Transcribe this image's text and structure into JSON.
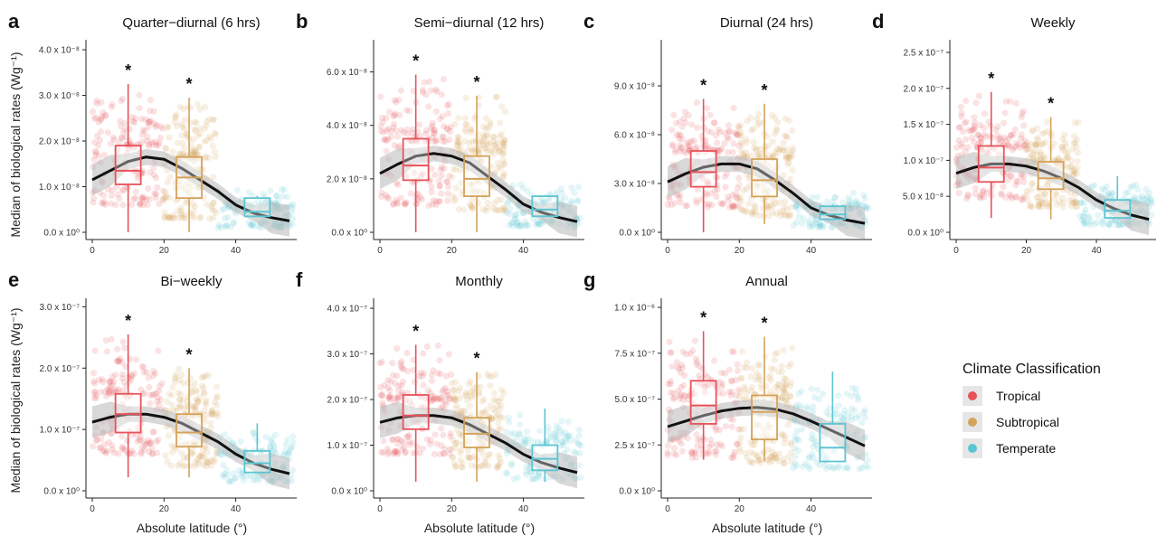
{
  "colors": {
    "tropical": "#e8525a",
    "subtropical": "#d4a35a",
    "temperate": "#5bc5d2",
    "trend": "#111111",
    "ribbon": "#b8b8b8"
  },
  "figure": {
    "y_axis_label": "Median of biological rates (Wg⁻¹)",
    "x_axis_label": "Absolute latitude (°)",
    "significance_marker": "*"
  },
  "legend": {
    "title": "Climate Classification",
    "items": [
      {
        "key": "tropical",
        "label": "Tropical"
      },
      {
        "key": "subtropical",
        "label": "Subtropical"
      },
      {
        "key": "temperate",
        "label": "Temperate"
      }
    ]
  },
  "chart_data": [
    {
      "id": "a",
      "letter": "a",
      "title": "Quarter−diurnal (6 hrs)",
      "type": "scatter",
      "xlim": [
        0,
        56
      ],
      "ylim": [
        0,
        4.1
      ],
      "x_ticks": [
        0,
        20,
        40
      ],
      "x_tick_labels": [
        "0",
        "20",
        "40"
      ],
      "y_ticks": [
        0,
        1,
        2,
        3,
        4
      ],
      "y_tick_labels": [
        "0.0 x 10⁰",
        "1.0 x 10⁻⁸",
        "2.0 x 10⁻⁸",
        "3.0 x 10⁻⁸",
        "4.0 x 10⁻⁸"
      ],
      "y_unit_scale": "1e-8",
      "trend": {
        "x": [
          0,
          5,
          10,
          15,
          20,
          25,
          30,
          35,
          40,
          45,
          50,
          55
        ],
        "y": [
          1.15,
          1.35,
          1.55,
          1.65,
          1.6,
          1.4,
          1.15,
          0.9,
          0.6,
          0.42,
          0.32,
          0.25
        ]
      },
      "boxes": [
        {
          "group": "tropical",
          "x": 10,
          "min": 0.0,
          "q1": 1.05,
          "median": 1.35,
          "q3": 1.9,
          "max": 3.25,
          "star": true
        },
        {
          "group": "subtropical",
          "x": 27,
          "min": 0.0,
          "q1": 0.75,
          "median": 1.2,
          "q3": 1.65,
          "max": 2.95,
          "star": true
        },
        {
          "group": "temperate",
          "x": 46,
          "min": 0.35,
          "q1": 0.35,
          "median": 0.45,
          "q3": 0.75,
          "max": 0.8,
          "star": false
        }
      ],
      "points": [
        {
          "group": "tropical",
          "x_range": [
            0,
            20
          ],
          "y_range": [
            0.6,
            3.2
          ]
        },
        {
          "group": "subtropical",
          "x_range": [
            20,
            35
          ],
          "y_range": [
            0.3,
            2.9
          ]
        },
        {
          "group": "temperate",
          "x_range": [
            35,
            56
          ],
          "y_range": [
            0.1,
            0.95
          ]
        }
      ]
    },
    {
      "id": "b",
      "letter": "b",
      "title": "Semi−diurnal (12 hrs)",
      "type": "scatter",
      "xlim": [
        0,
        56
      ],
      "ylim": [
        0,
        7.0
      ],
      "x_ticks": [
        0,
        20,
        40
      ],
      "x_tick_labels": [
        "0",
        "20",
        "40"
      ],
      "y_ticks": [
        0,
        2,
        4,
        6
      ],
      "y_tick_labels": [
        "0.0 x 10⁰",
        "2.0 x 10⁻⁸",
        "4.0 x 10⁻⁸",
        "6.0 x 10⁻⁸"
      ],
      "y_unit_scale": "1e-8",
      "trend": {
        "x": [
          0,
          5,
          10,
          15,
          20,
          25,
          30,
          35,
          40,
          45,
          50,
          55
        ],
        "y": [
          2.2,
          2.55,
          2.85,
          2.95,
          2.85,
          2.6,
          2.1,
          1.6,
          1.05,
          0.75,
          0.55,
          0.4
        ]
      },
      "boxes": [
        {
          "group": "tropical",
          "x": 10,
          "min": 0.0,
          "q1": 1.95,
          "median": 2.5,
          "q3": 3.5,
          "max": 5.9,
          "star": true
        },
        {
          "group": "subtropical",
          "x": 27,
          "min": 0.0,
          "q1": 1.35,
          "median": 2.0,
          "q3": 2.85,
          "max": 5.1,
          "star": true
        },
        {
          "group": "temperate",
          "x": 46,
          "min": 0.6,
          "q1": 0.6,
          "median": 0.85,
          "q3": 1.35,
          "max": 1.4,
          "star": false
        }
      ],
      "points": [
        {
          "group": "tropical",
          "x_range": [
            0,
            20
          ],
          "y_range": [
            1.0,
            5.8
          ]
        },
        {
          "group": "subtropical",
          "x_range": [
            20,
            35
          ],
          "y_range": [
            0.8,
            5.2
          ]
        },
        {
          "group": "temperate",
          "x_range": [
            35,
            56
          ],
          "y_range": [
            0.2,
            1.8
          ]
        }
      ]
    },
    {
      "id": "c",
      "letter": "c",
      "title": "Diurnal (24 hrs)",
      "type": "scatter",
      "xlim": [
        0,
        56
      ],
      "ylim": [
        0,
        11.5
      ],
      "x_ticks": [
        0,
        20,
        40
      ],
      "x_tick_labels": [
        "0",
        "20",
        "40"
      ],
      "y_ticks": [
        0,
        3,
        6,
        9
      ],
      "y_tick_labels": [
        "0.0 x 10⁰",
        "3.0 x 10⁻⁸",
        "6.0 x 10⁻⁸",
        "9.0 x 10⁻⁸"
      ],
      "y_unit_scale": "1e-8",
      "trend": {
        "x": [
          0,
          5,
          10,
          15,
          20,
          25,
          30,
          35,
          40,
          45,
          50,
          55
        ],
        "y": [
          3.1,
          3.6,
          4.0,
          4.2,
          4.2,
          3.9,
          3.2,
          2.4,
          1.5,
          1.05,
          0.75,
          0.55
        ]
      },
      "boxes": [
        {
          "group": "tropical",
          "x": 10,
          "min": 0.0,
          "q1": 2.8,
          "median": 3.7,
          "q3": 5.0,
          "max": 8.2,
          "star": true
        },
        {
          "group": "subtropical",
          "x": 27,
          "min": 0.5,
          "q1": 2.2,
          "median": 3.2,
          "q3": 4.5,
          "max": 7.9,
          "star": true
        },
        {
          "group": "temperate",
          "x": 46,
          "min": 0.8,
          "q1": 0.8,
          "median": 1.1,
          "q3": 1.6,
          "max": 1.7,
          "star": false
        }
      ],
      "points": [
        {
          "group": "tropical",
          "x_range": [
            0,
            20
          ],
          "y_range": [
            1.5,
            8.3
          ]
        },
        {
          "group": "subtropical",
          "x_range": [
            20,
            35
          ],
          "y_range": [
            1.0,
            8.0
          ]
        },
        {
          "group": "temperate",
          "x_range": [
            35,
            56
          ],
          "y_range": [
            0.3,
            2.5
          ]
        }
      ]
    },
    {
      "id": "d",
      "letter": "d",
      "title": "Weekly",
      "type": "scatter",
      "xlim": [
        0,
        56
      ],
      "ylim": [
        0,
        2.6
      ],
      "x_ticks": [
        0,
        20,
        40
      ],
      "x_tick_labels": [
        "0",
        "20",
        "40"
      ],
      "y_ticks": [
        0,
        0.5,
        1.0,
        1.5,
        2.0,
        2.5
      ],
      "y_tick_labels": [
        "0.0 x 10⁰",
        "5.0 x 10⁻⁸",
        "1.0 x 10⁻⁷",
        "1.5 x 10⁻⁷",
        "2.0 x 10⁻⁷",
        "2.5 x 10⁻⁷"
      ],
      "y_unit_scale": "1e-7",
      "trend": {
        "x": [
          0,
          5,
          10,
          15,
          20,
          25,
          30,
          35,
          40,
          45,
          50,
          55
        ],
        "y": [
          0.82,
          0.9,
          0.95,
          0.95,
          0.92,
          0.85,
          0.75,
          0.62,
          0.45,
          0.33,
          0.24,
          0.18
        ]
      },
      "boxes": [
        {
          "group": "tropical",
          "x": 10,
          "min": 0.2,
          "q1": 0.7,
          "median": 0.9,
          "q3": 1.2,
          "max": 1.95,
          "star": true
        },
        {
          "group": "subtropical",
          "x": 27,
          "min": 0.18,
          "q1": 0.6,
          "median": 0.75,
          "q3": 0.98,
          "max": 1.6,
          "star": true
        },
        {
          "group": "temperate",
          "x": 46,
          "min": 0.2,
          "q1": 0.2,
          "median": 0.3,
          "q3": 0.45,
          "max": 0.78,
          "star": false
        }
      ],
      "points": [
        {
          "group": "tropical",
          "x_range": [
            0,
            20
          ],
          "y_range": [
            0.45,
            1.9
          ]
        },
        {
          "group": "subtropical",
          "x_range": [
            20,
            35
          ],
          "y_range": [
            0.35,
            1.6
          ]
        },
        {
          "group": "temperate",
          "x_range": [
            35,
            56
          ],
          "y_range": [
            0.1,
            0.7
          ]
        }
      ]
    },
    {
      "id": "e",
      "letter": "e",
      "title": "Bi−weekly",
      "type": "scatter",
      "xlim": [
        0,
        56
      ],
      "ylim": [
        0,
        3.05
      ],
      "x_ticks": [
        0,
        20,
        40
      ],
      "x_tick_labels": [
        "0",
        "20",
        "40"
      ],
      "y_ticks": [
        0,
        1,
        2,
        3
      ],
      "y_tick_labels": [
        "0.0 x 10⁰",
        "1.0 x 10⁻⁷",
        "2.0 x 10⁻⁷",
        "3.0 x 10⁻⁷"
      ],
      "y_unit_scale": "1e-7",
      "trend": {
        "x": [
          0,
          5,
          10,
          15,
          20,
          25,
          30,
          35,
          40,
          45,
          50,
          55
        ],
        "y": [
          1.12,
          1.2,
          1.25,
          1.25,
          1.2,
          1.1,
          0.95,
          0.8,
          0.6,
          0.45,
          0.35,
          0.28
        ]
      },
      "boxes": [
        {
          "group": "tropical",
          "x": 10,
          "min": 0.22,
          "q1": 0.95,
          "median": 1.25,
          "q3": 1.58,
          "max": 2.55,
          "star": true
        },
        {
          "group": "subtropical",
          "x": 27,
          "min": 0.22,
          "q1": 0.72,
          "median": 0.95,
          "q3": 1.25,
          "max": 2.0,
          "star": true
        },
        {
          "group": "temperate",
          "x": 46,
          "min": 0.3,
          "q1": 0.3,
          "median": 0.45,
          "q3": 0.65,
          "max": 1.1,
          "star": false
        }
      ],
      "points": [
        {
          "group": "tropical",
          "x_range": [
            0,
            20
          ],
          "y_range": [
            0.6,
            2.5
          ]
        },
        {
          "group": "subtropical",
          "x_range": [
            20,
            35
          ],
          "y_range": [
            0.4,
            2.0
          ]
        },
        {
          "group": "temperate",
          "x_range": [
            35,
            56
          ],
          "y_range": [
            0.15,
            1.0
          ]
        }
      ]
    },
    {
      "id": "f",
      "letter": "f",
      "title": "Monthly",
      "type": "scatter",
      "xlim": [
        0,
        56
      ],
      "ylim": [
        0,
        4.1
      ],
      "x_ticks": [
        0,
        20,
        40
      ],
      "x_tick_labels": [
        "0",
        "20",
        "40"
      ],
      "y_ticks": [
        0,
        1,
        2,
        3,
        4
      ],
      "y_tick_labels": [
        "0.0 x 10⁰",
        "1.0 x 10⁻⁷",
        "2.0 x 10⁻⁷",
        "3.0 x 10⁻⁷",
        "4.0 x 10⁻⁷"
      ],
      "y_unit_scale": "1e-7",
      "trend": {
        "x": [
          0,
          5,
          10,
          15,
          20,
          25,
          30,
          35,
          40,
          45,
          50,
          55
        ],
        "y": [
          1.5,
          1.6,
          1.65,
          1.65,
          1.6,
          1.45,
          1.25,
          1.05,
          0.8,
          0.62,
          0.5,
          0.4
        ]
      },
      "boxes": [
        {
          "group": "tropical",
          "x": 10,
          "min": 0.2,
          "q1": 1.35,
          "median": 1.65,
          "q3": 2.1,
          "max": 3.2,
          "star": true
        },
        {
          "group": "subtropical",
          "x": 27,
          "min": 0.2,
          "q1": 0.95,
          "median": 1.25,
          "q3": 1.6,
          "max": 2.6,
          "star": true
        },
        {
          "group": "temperate",
          "x": 46,
          "min": 0.2,
          "q1": 0.45,
          "median": 0.7,
          "q3": 1.0,
          "max": 1.8,
          "star": false
        }
      ],
      "points": [
        {
          "group": "tropical",
          "x_range": [
            0,
            20
          ],
          "y_range": [
            0.8,
            3.2
          ]
        },
        {
          "group": "subtropical",
          "x_range": [
            20,
            35
          ],
          "y_range": [
            0.5,
            2.6
          ]
        },
        {
          "group": "temperate",
          "x_range": [
            35,
            56
          ],
          "y_range": [
            0.25,
            1.7
          ]
        }
      ]
    },
    {
      "id": "g",
      "letter": "g",
      "title": "Annual",
      "type": "scatter",
      "xlim": [
        0,
        56
      ],
      "ylim": [
        0,
        10.2
      ],
      "x_ticks": [
        0,
        20,
        40
      ],
      "x_tick_labels": [
        "0",
        "20",
        "40"
      ],
      "y_ticks": [
        0,
        2.5,
        5.0,
        7.5,
        10.0
      ],
      "y_tick_labels": [
        "0.0 x 10⁰",
        "2.5 x 10⁻⁷",
        "5.0 x 10⁻⁷",
        "7.5 x 10⁻⁷",
        "1.0 x 10⁻⁶"
      ],
      "y_unit_scale": "1e-7",
      "trend": {
        "x": [
          0,
          5,
          10,
          15,
          20,
          25,
          30,
          35,
          40,
          45,
          50,
          55
        ],
        "y": [
          3.5,
          3.8,
          4.1,
          4.35,
          4.5,
          4.55,
          4.45,
          4.2,
          3.8,
          3.35,
          2.9,
          2.45
        ]
      },
      "boxes": [
        {
          "group": "tropical",
          "x": 10,
          "min": 1.7,
          "q1": 3.65,
          "median": 4.65,
          "q3": 6.0,
          "max": 8.7,
          "star": true
        },
        {
          "group": "subtropical",
          "x": 27,
          "min": 1.6,
          "q1": 2.8,
          "median": 4.3,
          "q3": 5.2,
          "max": 8.4,
          "star": true
        },
        {
          "group": "temperate",
          "x": 46,
          "min": 1.6,
          "q1": 1.6,
          "median": 2.35,
          "q3": 3.65,
          "max": 6.5,
          "star": false
        }
      ],
      "points": [
        {
          "group": "tropical",
          "x_range": [
            0,
            20
          ],
          "y_range": [
            1.8,
            8.5
          ]
        },
        {
          "group": "subtropical",
          "x_range": [
            20,
            35
          ],
          "y_range": [
            1.5,
            8.3
          ]
        },
        {
          "group": "temperate",
          "x_range": [
            35,
            56
          ],
          "y_range": [
            1.2,
            6.2
          ]
        }
      ]
    }
  ]
}
